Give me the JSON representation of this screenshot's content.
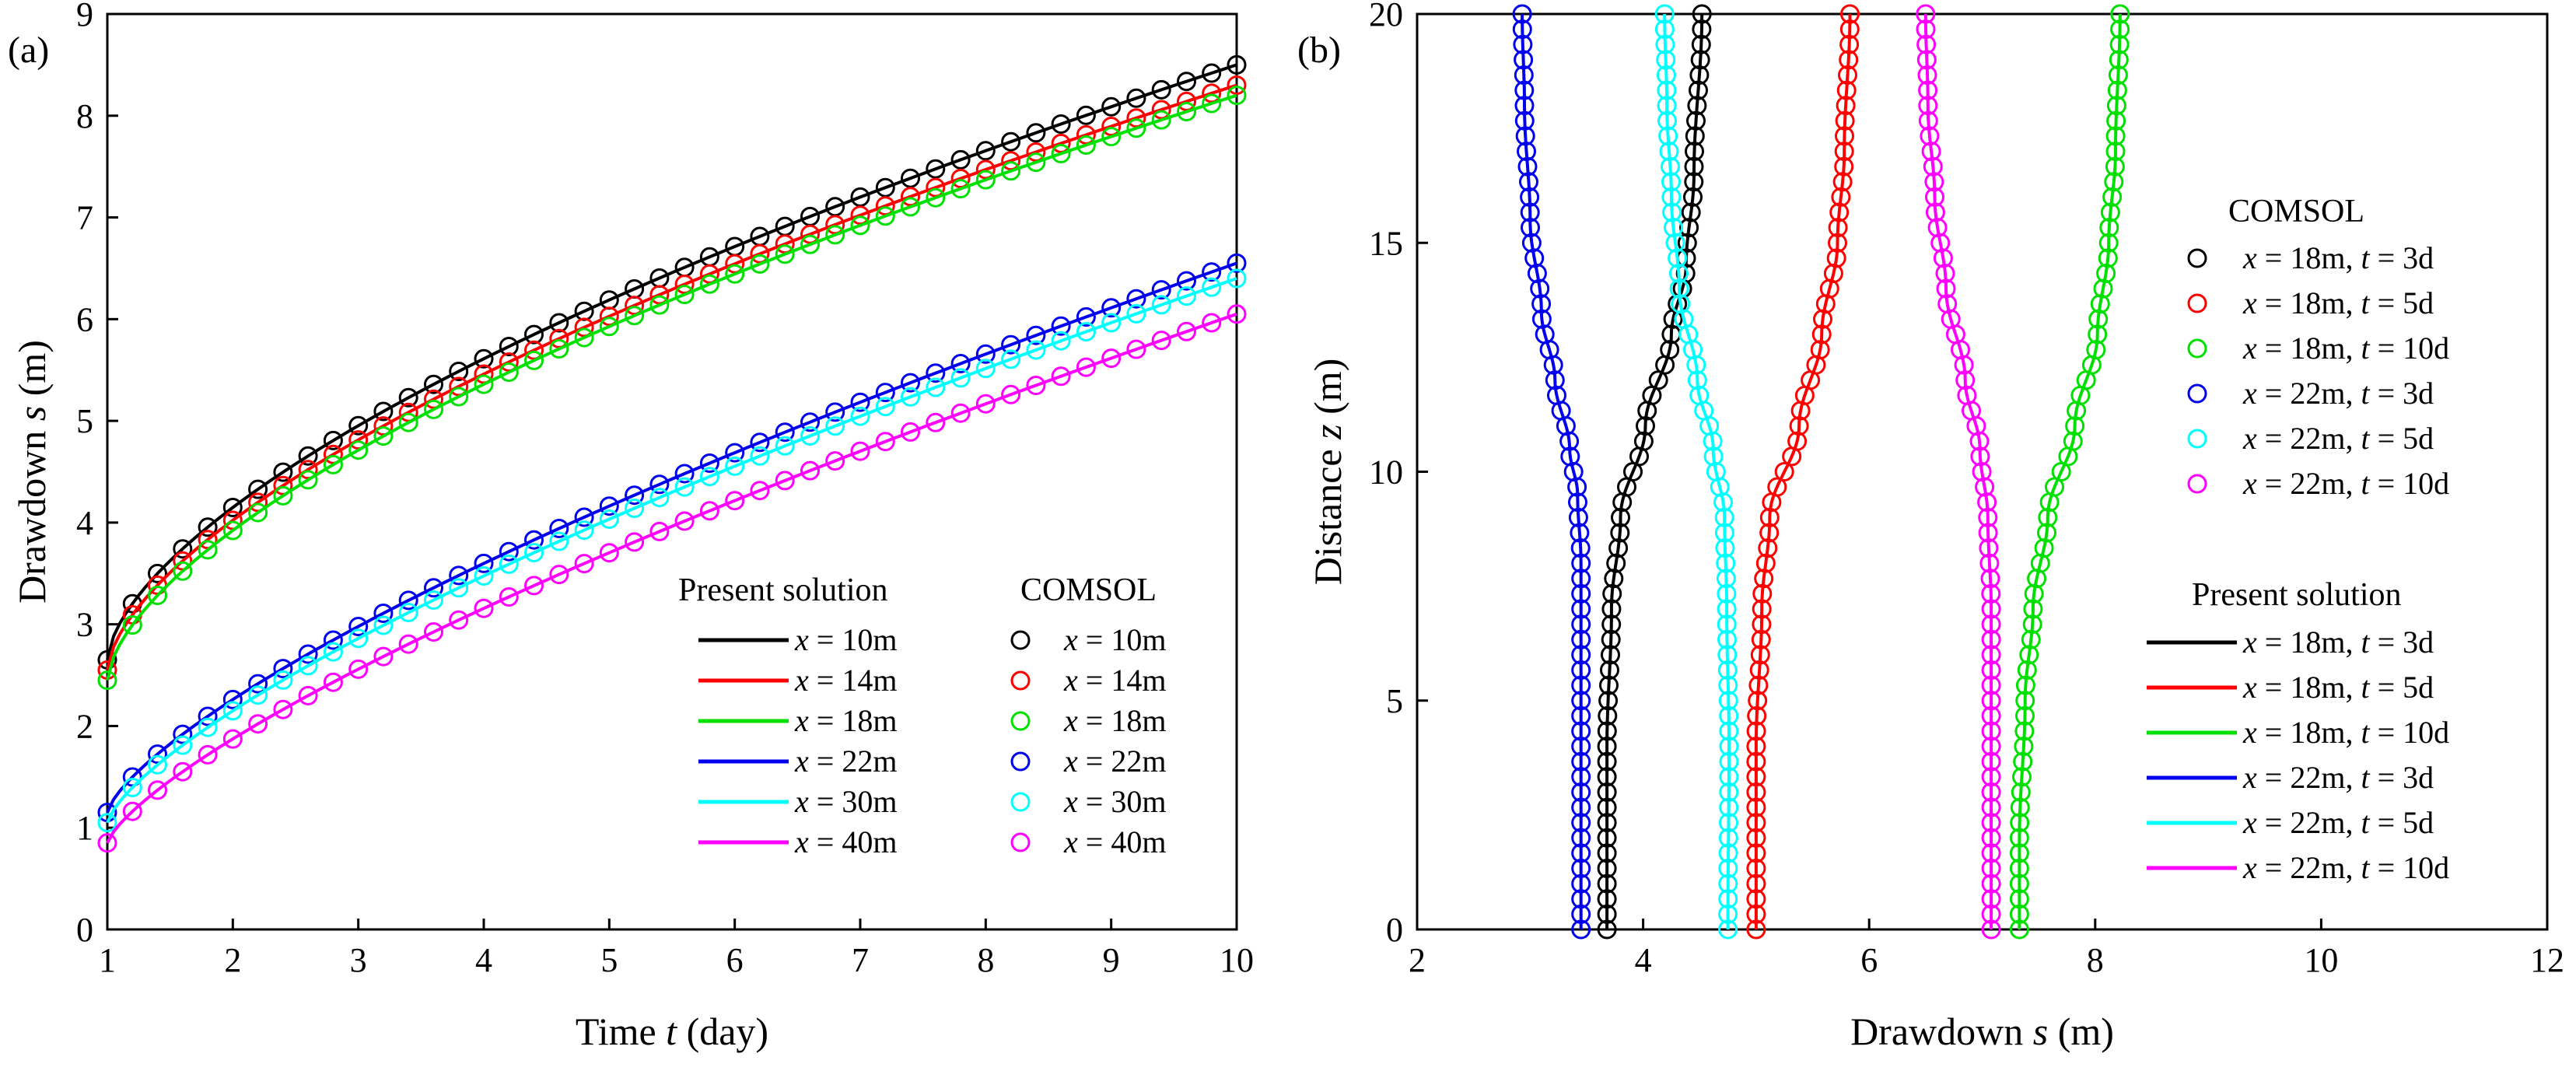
{
  "chart_data": [
    {
      "type": "line",
      "panel_label": "(a)",
      "xlabel_pre": "Time ",
      "xlabel_var": "t",
      "xlabel_post": " (day)",
      "ylabel_pre": "Drawdown ",
      "ylabel_var": "s",
      "ylabel_post": " (m)",
      "xlim": [
        1,
        10
      ],
      "ylim": [
        0,
        9
      ],
      "xticks": [
        "1",
        "2",
        "3",
        "4",
        "5",
        "6",
        "7",
        "8",
        "9",
        "10"
      ],
      "yticks": [
        "0",
        "1",
        "2",
        "3",
        "4",
        "5",
        "6",
        "7",
        "8",
        "9"
      ],
      "legend_header_lines": "Present solution",
      "legend_header_markers": "COMSOL",
      "legend_position": "bottom-right",
      "series": [
        {
          "name": "x = 10m",
          "var": "x",
          "rest": " = 10m",
          "color": "#000000",
          "s1": 2.65,
          "s10": 8.5,
          "k": 0.62
        },
        {
          "name": "x = 14m",
          "var": "x",
          "rest": " = 14m",
          "color": "#ff0000",
          "s1": 2.55,
          "s10": 8.3,
          "k": 0.62
        },
        {
          "name": "x = 18m",
          "var": "x",
          "rest": " = 18m",
          "color": "#00e000",
          "s1": 2.45,
          "s10": 8.2,
          "k": 0.62
        },
        {
          "name": "x = 22m",
          "var": "x",
          "rest": " = 22m",
          "color": "#0000ee",
          "s1": 1.15,
          "s10": 6.55,
          "k": 0.72
        },
        {
          "name": "x = 30m",
          "var": "x",
          "rest": " = 30m",
          "color": "#00ffff",
          "s1": 1.05,
          "s10": 6.4,
          "k": 0.72
        },
        {
          "name": "x = 40m",
          "var": "x",
          "rest": " = 40m",
          "color": "#ff00ff",
          "s1": 0.85,
          "s10": 6.05,
          "k": 0.74
        }
      ]
    },
    {
      "type": "line",
      "panel_label": "(b)",
      "xlabel_pre": "Drawdown ",
      "xlabel_var": "s",
      "xlabel_post": " (m)",
      "ylabel_pre": "Distance ",
      "ylabel_var": "z",
      "ylabel_post": " (m)",
      "xlim": [
        2,
        12
      ],
      "ylim": [
        0,
        20
      ],
      "xticks": [
        "2",
        "4",
        "6",
        "8",
        "10",
        "12"
      ],
      "yticks": [
        "0",
        "5",
        "10",
        "15",
        "20"
      ],
      "legend_header_markers": "COMSOL",
      "legend_header_lines": "Present solution",
      "legend_position": "right",
      "series": [
        {
          "name": "x = 18m, t = 3d",
          "color": "#000000",
          "profile": [
            [
              0,
              3.68
            ],
            [
              4,
              3.68
            ],
            [
              7,
              3.72
            ],
            [
              9,
              3.8
            ],
            [
              11,
              4.02
            ],
            [
              13,
              4.25
            ],
            [
              14.5,
              4.38
            ],
            [
              16.5,
              4.45
            ],
            [
              20,
              4.52
            ]
          ]
        },
        {
          "name": "x = 18m, t = 5d",
          "color": "#ff0000",
          "profile": [
            [
              0,
              5.0
            ],
            [
              4,
              5.0
            ],
            [
              7,
              5.05
            ],
            [
              9,
              5.12
            ],
            [
              11,
              5.38
            ],
            [
              13,
              5.58
            ],
            [
              15,
              5.72
            ],
            [
              17,
              5.78
            ],
            [
              20,
              5.83
            ]
          ]
        },
        {
          "name": "x = 18m, t = 10d",
          "color": "#00e000",
          "profile": [
            [
              0,
              7.33
            ],
            [
              2,
              7.33
            ],
            [
              5,
              7.38
            ],
            [
              7,
              7.45
            ],
            [
              9,
              7.58
            ],
            [
              11,
              7.82
            ],
            [
              13,
              8.02
            ],
            [
              15,
              8.12
            ],
            [
              17,
              8.18
            ],
            [
              20,
              8.22
            ]
          ]
        },
        {
          "name": "x = 22m, t = 3d",
          "color": "#0000ee",
          "profile": [
            [
              0,
              3.45
            ],
            [
              5,
              3.45
            ],
            [
              8,
              3.45
            ],
            [
              9.5,
              3.42
            ],
            [
              10.5,
              3.35
            ],
            [
              12,
              3.22
            ],
            [
              13.5,
              3.1
            ],
            [
              15.5,
              3.0
            ],
            [
              18,
              2.95
            ],
            [
              20,
              2.93
            ]
          ]
        },
        {
          "name": "x = 22m, t = 5d",
          "color": "#00ffff",
          "profile": [
            [
              0,
              4.75
            ],
            [
              4,
              4.76
            ],
            [
              7,
              4.74
            ],
            [
              9,
              4.72
            ],
            [
              10.5,
              4.62
            ],
            [
              12,
              4.48
            ],
            [
              14,
              4.32
            ],
            [
              16,
              4.25
            ],
            [
              18,
              4.21
            ],
            [
              20,
              4.19
            ]
          ]
        },
        {
          "name": "x = 22m, t = 10d",
          "color": "#ff00ff",
          "profile": [
            [
              0,
              7.08
            ],
            [
              4,
              7.08
            ],
            [
              7,
              7.08
            ],
            [
              9,
              7.05
            ],
            [
              10.5,
              6.98
            ],
            [
              12,
              6.85
            ],
            [
              14,
              6.68
            ],
            [
              16,
              6.58
            ],
            [
              18,
              6.52
            ],
            [
              20,
              6.5
            ]
          ]
        }
      ]
    }
  ]
}
